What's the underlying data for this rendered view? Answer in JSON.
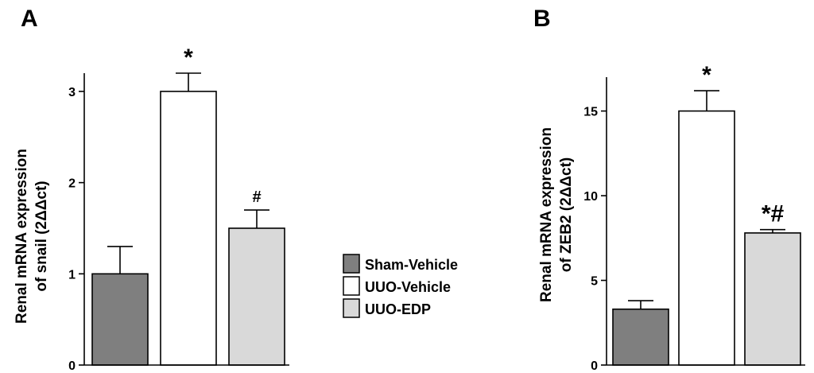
{
  "legend": [
    {
      "label": "Sham-Vehicle",
      "color": "#7f7f7f"
    },
    {
      "label": "UUO-Vehicle",
      "color": "#ffffff"
    },
    {
      "label": "UUO-EDP",
      "color": "#d9d9d9"
    }
  ],
  "chart_data": [
    {
      "type": "bar",
      "panel": "A",
      "ylabel_line1": "Renal mRNA expression",
      "ylabel_line2": "of snail (2ΔΔct)",
      "ylim": [
        0,
        3.2
      ],
      "yticks": [
        0,
        1,
        2,
        3
      ],
      "categories": [
        "Sham-Vehicle",
        "UUO-Vehicle",
        "UUO-EDP"
      ],
      "values": [
        1.0,
        3.0,
        1.5
      ],
      "errors": [
        0.3,
        0.2,
        0.2
      ],
      "annotations": [
        "",
        "*",
        "#"
      ]
    },
    {
      "type": "bar",
      "panel": "B",
      "ylabel_line1": "Renal mRNA expression",
      "ylabel_line2": "of ZEB2 (2ΔΔct)",
      "ylim": [
        0,
        17
      ],
      "yticks": [
        0,
        5,
        10,
        15
      ],
      "categories": [
        "Sham-Vehicle",
        "UUO-Vehicle",
        "UUO-EDP"
      ],
      "values": [
        3.3,
        15.0,
        7.8
      ],
      "errors": [
        0.5,
        1.2,
        0.2
      ],
      "annotations": [
        "",
        "*",
        "*#"
      ]
    }
  ]
}
